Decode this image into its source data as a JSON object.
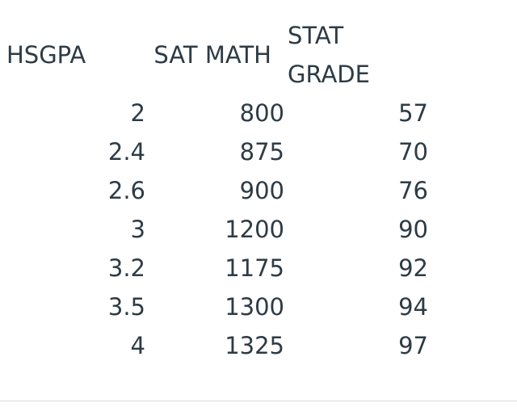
{
  "table": {
    "headers": {
      "hsgpa": "HSGPA",
      "sat_math": "SAT MATH",
      "stat_grade_line1": "STAT",
      "stat_grade_line2": "GRADE"
    },
    "rows": [
      {
        "hsgpa": "2",
        "sat_math": "800",
        "stat_grade": "57"
      },
      {
        "hsgpa": "2.4",
        "sat_math": "875",
        "stat_grade": "70"
      },
      {
        "hsgpa": "2.6",
        "sat_math": "900",
        "stat_grade": "76"
      },
      {
        "hsgpa": "3",
        "sat_math": "1200",
        "stat_grade": "90"
      },
      {
        "hsgpa": "3.2",
        "sat_math": "1175",
        "stat_grade": "92"
      },
      {
        "hsgpa": "3.5",
        "sat_math": "1300",
        "stat_grade": "94"
      },
      {
        "hsgpa": "4",
        "sat_math": "1325",
        "stat_grade": "97"
      }
    ]
  },
  "colors": {
    "text": "#2d3b45",
    "rule": "#d7dadd"
  }
}
